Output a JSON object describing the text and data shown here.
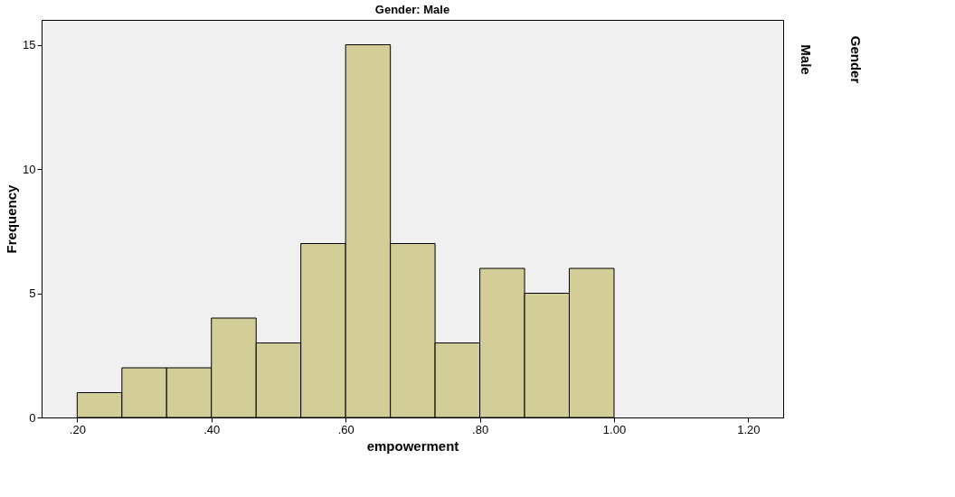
{
  "chart_data": {
    "type": "histogram",
    "title": "Gender: Male",
    "xlabel": "empowerment",
    "ylabel": "Frequency",
    "bins": [
      0.2,
      0.2667,
      0.3333,
      0.4,
      0.4667,
      0.5333,
      0.6,
      0.6667,
      0.7333,
      0.8,
      0.8667,
      0.9333,
      1.0
    ],
    "values": [
      1,
      2,
      2,
      4,
      3,
      7,
      15,
      7,
      3,
      6,
      5,
      6
    ],
    "color": "#d3ce97",
    "xlim": [
      0.147,
      1.252
    ],
    "ylim": [
      0,
      16
    ],
    "xticks": [
      {
        "value": 0.2,
        "label": ".20"
      },
      {
        "value": 0.4,
        "label": ".40"
      },
      {
        "value": 0.6,
        "label": ".60"
      },
      {
        "value": 0.8,
        "label": ".80"
      },
      {
        "value": 1.0,
        "label": "1.00"
      },
      {
        "value": 1.2,
        "label": "1.20"
      }
    ],
    "yticks": [
      0,
      5,
      10,
      15
    ],
    "annotations": [
      "Male",
      "Gender"
    ],
    "grid": false
  }
}
